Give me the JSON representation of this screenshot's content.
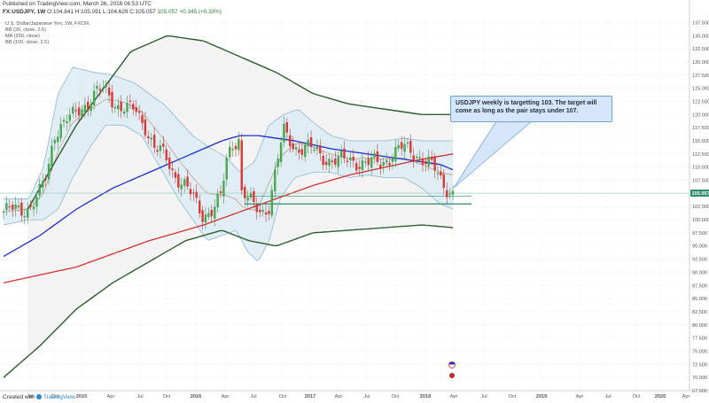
{
  "header": {
    "published": "Published on TradingView.com, March 26, 2018 06:53 UTC",
    "symbol": "FX:USDJPY, 1W",
    "open": "O:104.841",
    "high": "H:105.091",
    "low": "L:104.629",
    "close": "C:105.057",
    "change": "105.057 +0.345 (+0.33%)"
  },
  "legend": {
    "line1": "U.S. Dollar/Japanese Yen, 1W, FXCM",
    "line2": "BB (20, close, 2.5)",
    "line3": "MA (200, close)",
    "line4": "BB (100, close, 2.5)"
  },
  "annotation": {
    "text": "USDJPY weekly is targetting 103. The target will come as long as the pair stays under 107."
  },
  "footer": {
    "created_with": "Created with",
    "brand": "TradingView"
  },
  "colors": {
    "up": "#4caf50",
    "down": "#e53935",
    "ma200": "#d32f2f",
    "ema_blue": "#1e2fc8",
    "bb100": "#2e5d2e",
    "bb20": "#8fb8c9",
    "bb20_fill": "#dcebf3",
    "bb100_fill": "#f3f3f3",
    "level": "#2e8b6b",
    "price_tag": "#2e8b6b"
  },
  "chart_data": {
    "type": "candlestick",
    "y_axis_side": "right",
    "ylim": [
      67.5,
      138.75
    ],
    "y_ticks": [
      "137.500",
      "135.000",
      "132.500",
      "130.000",
      "127.500",
      "125.000",
      "122.500",
      "120.000",
      "117.500",
      "115.000",
      "112.500",
      "110.000",
      "107.500",
      "105.000",
      "102.500",
      "100.000",
      "97.500",
      "95.000",
      "92.500",
      "90.000",
      "87.500",
      "85.000",
      "82.500",
      "80.000",
      "77.500",
      "75.000",
      "72.500",
      "70.000",
      "67.500"
    ],
    "x_ticks": [
      "Jul",
      "Oct",
      "2015",
      "Apr",
      "Jul",
      "Oct",
      "2016",
      "Apr",
      "Jul",
      "Oct",
      "2017",
      "Apr",
      "Jul",
      "Oct",
      "2018",
      "Apr",
      "Jul",
      "Oct",
      "2019",
      "Apr",
      "Jul",
      "Oct",
      "2020",
      "Apr"
    ],
    "last_price": "105.057",
    "levels": [
      103.0,
      104.5
    ],
    "events_icon": "calendar-flag-icon",
    "closes": [
      {
        "x": "2014-Q2",
        "y": 101.8
      },
      {
        "x": "2014-Q3",
        "y": 103.5
      },
      {
        "x": "2014-Q4",
        "y": 115.0
      },
      {
        "x": "2015-Q1",
        "y": 119.5
      },
      {
        "x": "2015-Q2",
        "y": 123.5
      },
      {
        "x": "2015-Q3",
        "y": 120.5
      },
      {
        "x": "2015-Q4",
        "y": 121.5
      },
      {
        "x": "2016-Q1",
        "y": 113.0
      },
      {
        "x": "2016-Q2",
        "y": 106.0
      },
      {
        "x": "2016-Q3",
        "y": 101.5
      },
      {
        "x": "2016-Q4",
        "y": 115.0
      },
      {
        "x": "2017-Q1",
        "y": 112.0
      },
      {
        "x": "2017-Q2",
        "y": 111.5
      },
      {
        "x": "2017-Q3",
        "y": 112.5
      },
      {
        "x": "2017-Q4",
        "y": 113.0
      },
      {
        "x": "2018-Q1",
        "y": 105.0
      }
    ]
  }
}
